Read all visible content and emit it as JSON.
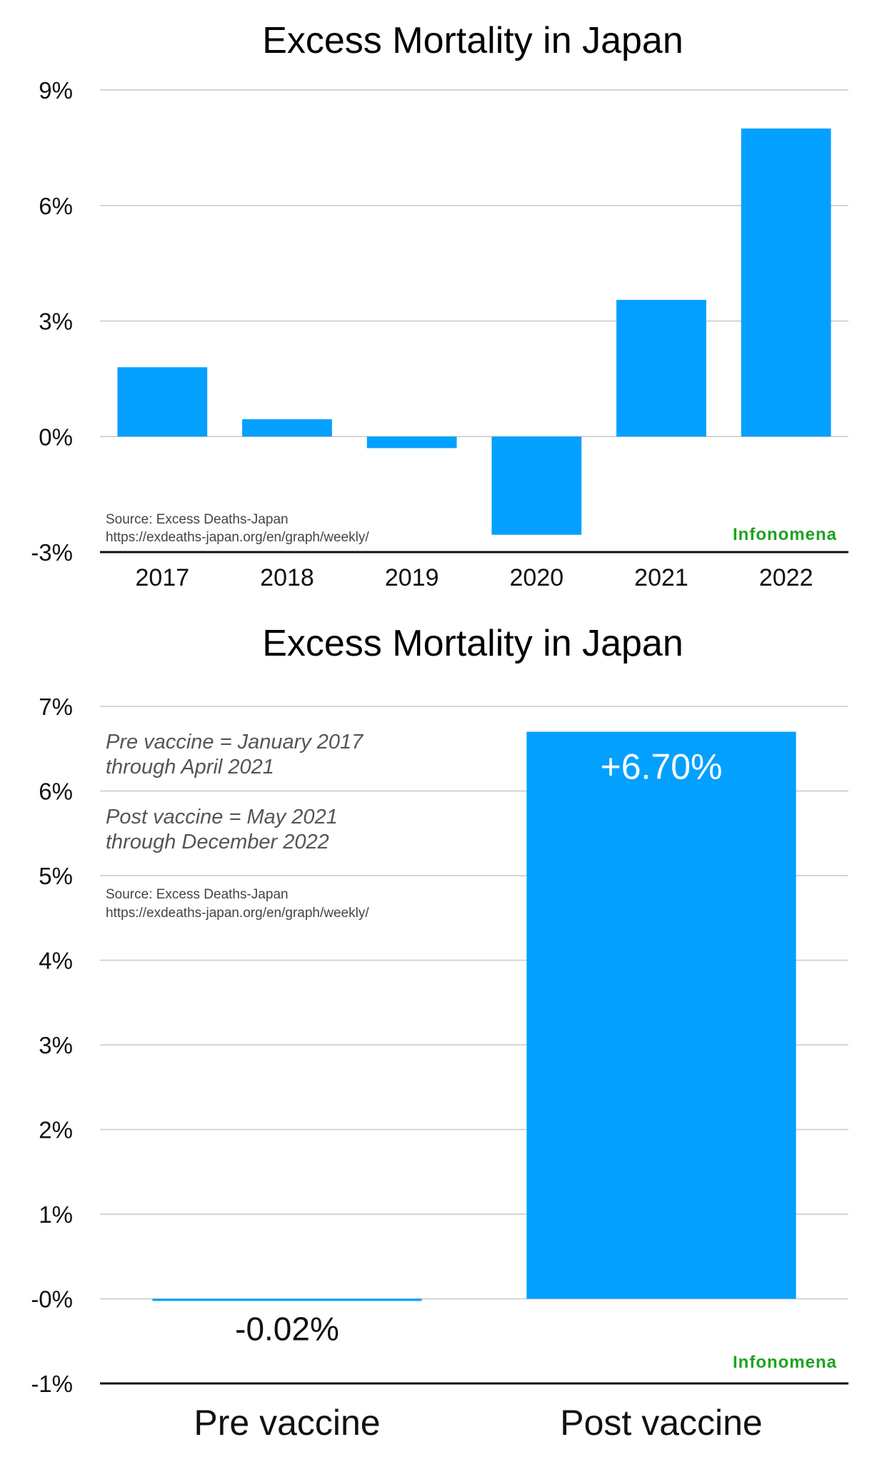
{
  "chart_data": [
    {
      "type": "bar",
      "title": "Excess Mortality in Japan",
      "categories": [
        "2017",
        "2018",
        "2019",
        "2020",
        "2021",
        "2022"
      ],
      "values": [
        1.8,
        0.45,
        -0.3,
        -2.55,
        3.55,
        8.0
      ],
      "ylim": [
        -3,
        9
      ],
      "yticks": [
        9,
        6,
        3,
        0,
        -3
      ],
      "ytick_labels": [
        "9%",
        "6%",
        "3%",
        "0%",
        "-3%"
      ],
      "xlabel": "",
      "ylabel": "",
      "grid": true,
      "source_line1": "Source: Excess Deaths-Japan",
      "source_line2": "https://exdeaths-japan.org/en/graph/weekly/",
      "brand": "Infonomena"
    },
    {
      "type": "bar",
      "title": "Excess Mortality in Japan",
      "categories": [
        "Pre vaccine",
        "Post vaccine"
      ],
      "values": [
        -0.02,
        6.7
      ],
      "data_labels": [
        "-0.02%",
        "+6.70%"
      ],
      "ylim": [
        -1,
        7
      ],
      "yticks": [
        7,
        6,
        5,
        4,
        3,
        2,
        1,
        0,
        -1
      ],
      "ytick_labels": [
        "7%",
        "6%",
        "5%",
        "4%",
        "3%",
        "2%",
        "1%",
        "-0%",
        "-1%"
      ],
      "xlabel": "",
      "ylabel": "",
      "grid": true,
      "notes": [
        "Pre vaccine = January 2017",
        "through April 2021",
        "Post vaccine = May 2021",
        "through December 2022"
      ],
      "source_line1": "Source: Excess Deaths-Japan",
      "source_line2": "https://exdeaths-japan.org/en/graph/weekly/",
      "brand": "Infonomena"
    }
  ]
}
